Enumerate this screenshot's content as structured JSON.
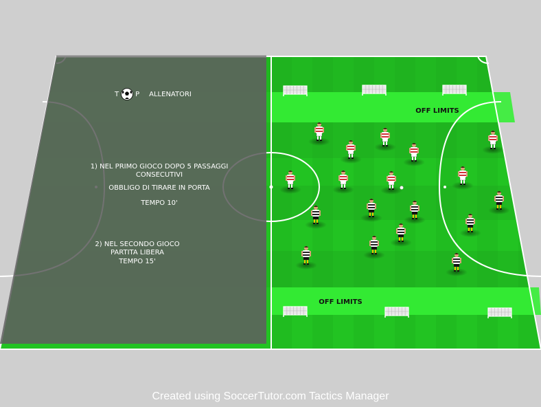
{
  "logo": {
    "letter_left": "T",
    "letter_right": "P",
    "ball_icon": "soccer-ball-icon",
    "brand_text": "ALLENATORI"
  },
  "instructions": {
    "line1a": "1) NEL PRIMO GIOCO DOPO 5 PASSAGGI",
    "line1b": "CONSECUTIVI",
    "line2": "OBBLIGO DI TIRARE IN PORTA",
    "line3": "TEMPO  10'",
    "line4a": "2) NEL SECONDO GIOCO",
    "line4b": "PARTITA LIBERA",
    "line4c": "TEMPO 15'"
  },
  "zones": {
    "top_label": "OFF LIMITS",
    "bottom_label": "OFF LIMITS"
  },
  "teams": {
    "red_kit": {
      "shirt": "#ffffff",
      "stripe": "#d0303a",
      "shorts": "#ffffff"
    },
    "black_kit": {
      "shirt": "#ffffff",
      "stripe": "#222222",
      "shorts": "#111111",
      "socks": "#e8c800"
    }
  },
  "colors": {
    "pitch_light": "#22c322",
    "pitch_dark": "#1fae1f",
    "shade": "#5d5d5d",
    "zone": "#33ee33"
  },
  "footer": {
    "credit": "Created using SoccerTutor.com Tactics Manager"
  }
}
